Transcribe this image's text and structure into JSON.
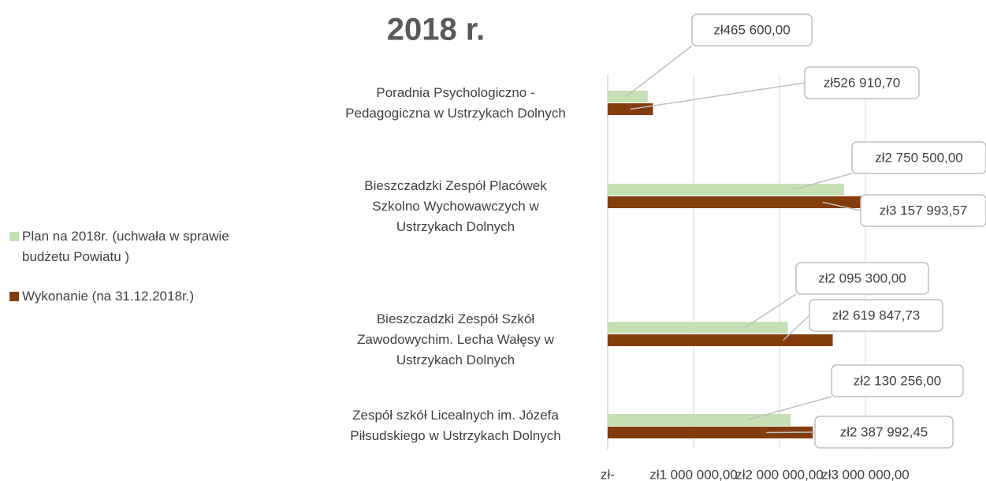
{
  "chart_data": {
    "type": "bar",
    "orientation": "horizontal",
    "title": "2018 r.",
    "categories": [
      "Poradnia Psychologiczno -\nPedagogiczna w Ustrzykach Dolnych",
      "Bieszczadzki Zespół Placówek\nSzkolno Wychowawczych w\nUstrzykach Dolnych",
      "Bieszczadzki Zespół Szkół\nZawodowychim. Lecha Wałęsy w\nUstrzykach Dolnych",
      "Zespół szkół Licealnych im. Józefa\nPiłsudskiego w Ustrzykach Dolnych"
    ],
    "series": [
      {
        "name": "Plan na 2018r. (uchwała w sprawie\nbudżetu Powiatu )",
        "color": "#c5e0b4",
        "values": [
          465600,
          2750500,
          2095300,
          2130256
        ],
        "value_labels": [
          "zł465 600,00",
          "zł2 750 500,00",
          "zł2 095 300,00",
          "zł2 130 256,00"
        ]
      },
      {
        "name": "Wykonanie (na 31.12.2018r.)",
        "color": "#843c0c",
        "values": [
          526910.7,
          3157993.57,
          2619847.73,
          2387992.45
        ],
        "value_labels": [
          "zł526 910,70",
          "zł3 157 993,57",
          "zł2 619 847,73",
          "zł2 387 992,45"
        ]
      }
    ],
    "xlim": [
      0,
      3000000
    ],
    "xticks": [
      {
        "value": 0,
        "label": "zł-"
      },
      {
        "value": 1000000,
        "label": "zł1 000 000,00"
      },
      {
        "value": 2000000,
        "label": "zł2 000 000,00"
      },
      {
        "value": 3000000,
        "label": "zł3 000 000,00"
      }
    ],
    "grid": true,
    "legend": "left"
  }
}
